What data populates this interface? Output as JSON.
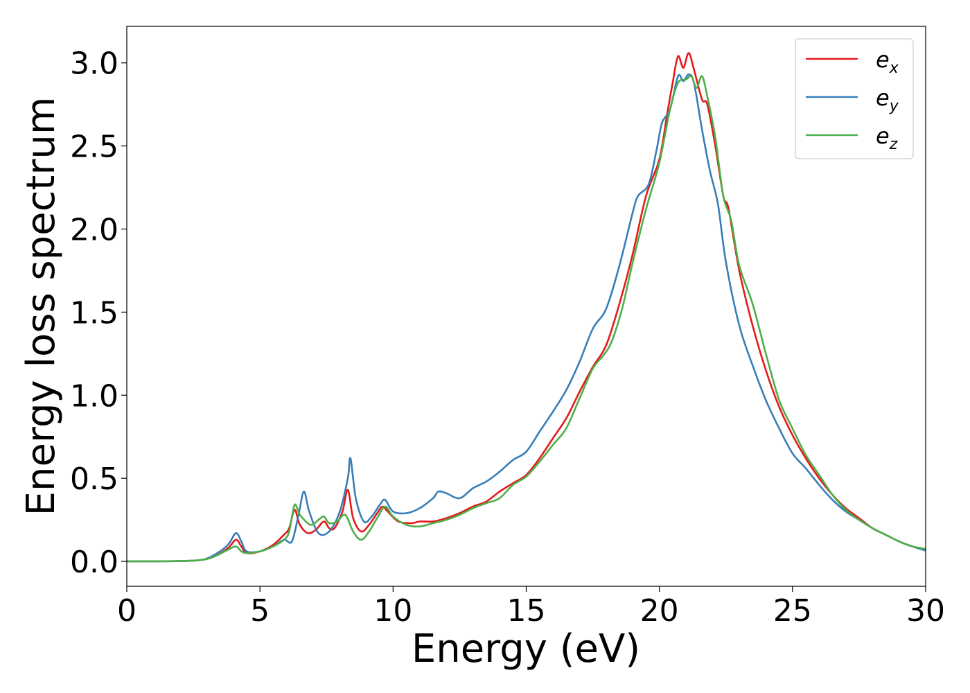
{
  "chart_data": {
    "type": "line",
    "title": "",
    "xlabel": "Energy (eV)",
    "ylabel": "Energy loss spectrum",
    "xlim": [
      0,
      30
    ],
    "ylim": [
      -0.15,
      3.22
    ],
    "xticks": [
      0,
      5,
      10,
      15,
      20,
      25,
      30
    ],
    "yticks": [
      0.0,
      0.5,
      1.0,
      1.5,
      2.0,
      2.5,
      3.0
    ],
    "xtick_labels": [
      "0",
      "5",
      "10",
      "15",
      "20",
      "25",
      "30"
    ],
    "ytick_labels": [
      "0.0",
      "0.5",
      "1.0",
      "1.5",
      "2.0",
      "2.5",
      "3.0"
    ],
    "grid": false,
    "legend_position": "top-right",
    "series": [
      {
        "legend_base": "e",
        "legend_sub": "x",
        "color": "#e41a1c",
        "points": [
          [
            0,
            0
          ],
          [
            2,
            0.002
          ],
          [
            2.8,
            0.008
          ],
          [
            3.3,
            0.03
          ],
          [
            3.8,
            0.08
          ],
          [
            4.1,
            0.13
          ],
          [
            4.3,
            0.09
          ],
          [
            4.5,
            0.05
          ],
          [
            5,
            0.06
          ],
          [
            5.5,
            0.1
          ],
          [
            5.9,
            0.16
          ],
          [
            6.1,
            0.2
          ],
          [
            6.3,
            0.31
          ],
          [
            6.5,
            0.22
          ],
          [
            6.8,
            0.17
          ],
          [
            7.1,
            0.19
          ],
          [
            7.4,
            0.24
          ],
          [
            7.6,
            0.2
          ],
          [
            7.8,
            0.2
          ],
          [
            8.1,
            0.3
          ],
          [
            8.3,
            0.43
          ],
          [
            8.5,
            0.26
          ],
          [
            8.8,
            0.18
          ],
          [
            9.1,
            0.22
          ],
          [
            9.4,
            0.29
          ],
          [
            9.6,
            0.33
          ],
          [
            9.8,
            0.3
          ],
          [
            10.2,
            0.24
          ],
          [
            10.7,
            0.23
          ],
          [
            11,
            0.24
          ],
          [
            11.5,
            0.24
          ],
          [
            12,
            0.26
          ],
          [
            12.5,
            0.29
          ],
          [
            13,
            0.33
          ],
          [
            13.5,
            0.36
          ],
          [
            14,
            0.42
          ],
          [
            14.5,
            0.47
          ],
          [
            15,
            0.52
          ],
          [
            15.5,
            0.62
          ],
          [
            16,
            0.74
          ],
          [
            16.5,
            0.86
          ],
          [
            17,
            1.02
          ],
          [
            17.5,
            1.17
          ],
          [
            18,
            1.3
          ],
          [
            18.5,
            1.55
          ],
          [
            19,
            1.85
          ],
          [
            19.5,
            2.2
          ],
          [
            20,
            2.42
          ],
          [
            20.3,
            2.7
          ],
          [
            20.5,
            2.88
          ],
          [
            20.7,
            3.04
          ],
          [
            20.9,
            2.97
          ],
          [
            21.1,
            3.06
          ],
          [
            21.3,
            2.96
          ],
          [
            21.6,
            2.78
          ],
          [
            21.8,
            2.75
          ],
          [
            22.1,
            2.5
          ],
          [
            22.4,
            2.2
          ],
          [
            22.6,
            2.12
          ],
          [
            23,
            1.75
          ],
          [
            23.5,
            1.42
          ],
          [
            24,
            1.15
          ],
          [
            24.5,
            0.93
          ],
          [
            25,
            0.76
          ],
          [
            25.5,
            0.62
          ],
          [
            26,
            0.5
          ],
          [
            26.5,
            0.4
          ],
          [
            27,
            0.32
          ],
          [
            27.5,
            0.26
          ],
          [
            28,
            0.2
          ],
          [
            28.5,
            0.16
          ],
          [
            29,
            0.12
          ],
          [
            29.5,
            0.09
          ],
          [
            30,
            0.07
          ]
        ]
      },
      {
        "legend_base": "e",
        "legend_sub": "y",
        "color": "#377eb8",
        "points": [
          [
            0,
            0
          ],
          [
            2,
            0.002
          ],
          [
            2.8,
            0.008
          ],
          [
            3.3,
            0.04
          ],
          [
            3.8,
            0.1
          ],
          [
            4.1,
            0.17
          ],
          [
            4.3,
            0.12
          ],
          [
            4.5,
            0.06
          ],
          [
            5,
            0.06
          ],
          [
            5.5,
            0.09
          ],
          [
            5.9,
            0.13
          ],
          [
            6.2,
            0.12
          ],
          [
            6.45,
            0.28
          ],
          [
            6.65,
            0.42
          ],
          [
            6.85,
            0.3
          ],
          [
            7.2,
            0.17
          ],
          [
            7.6,
            0.18
          ],
          [
            8.0,
            0.3
          ],
          [
            8.3,
            0.5
          ],
          [
            8.4,
            0.62
          ],
          [
            8.6,
            0.38
          ],
          [
            8.9,
            0.24
          ],
          [
            9.2,
            0.27
          ],
          [
            9.5,
            0.34
          ],
          [
            9.7,
            0.37
          ],
          [
            10,
            0.3
          ],
          [
            10.5,
            0.29
          ],
          [
            11,
            0.32
          ],
          [
            11.5,
            0.38
          ],
          [
            11.7,
            0.42
          ],
          [
            12,
            0.41
          ],
          [
            12.5,
            0.38
          ],
          [
            13,
            0.44
          ],
          [
            13.5,
            0.48
          ],
          [
            14,
            0.54
          ],
          [
            14.5,
            0.61
          ],
          [
            15,
            0.66
          ],
          [
            15.5,
            0.78
          ],
          [
            16,
            0.9
          ],
          [
            16.5,
            1.03
          ],
          [
            17,
            1.2
          ],
          [
            17.5,
            1.4
          ],
          [
            18,
            1.52
          ],
          [
            18.5,
            1.78
          ],
          [
            19,
            2.1
          ],
          [
            19.2,
            2.2
          ],
          [
            19.6,
            2.27
          ],
          [
            19.9,
            2.48
          ],
          [
            20.1,
            2.64
          ],
          [
            20.4,
            2.72
          ],
          [
            20.7,
            2.92
          ],
          [
            20.9,
            2.89
          ],
          [
            21.1,
            2.93
          ],
          [
            21.3,
            2.88
          ],
          [
            21.6,
            2.6
          ],
          [
            21.9,
            2.35
          ],
          [
            22.2,
            2.15
          ],
          [
            22.5,
            1.8
          ],
          [
            23,
            1.42
          ],
          [
            23.5,
            1.18
          ],
          [
            24,
            0.97
          ],
          [
            24.5,
            0.8
          ],
          [
            25,
            0.65
          ],
          [
            25.5,
            0.56
          ],
          [
            26,
            0.46
          ],
          [
            26.5,
            0.37
          ],
          [
            27,
            0.3
          ],
          [
            27.5,
            0.25
          ],
          [
            28,
            0.2
          ],
          [
            28.5,
            0.16
          ],
          [
            29,
            0.12
          ],
          [
            29.5,
            0.09
          ],
          [
            30,
            0.065
          ]
        ]
      },
      {
        "legend_base": "e",
        "legend_sub": "z",
        "color": "#4daf4a",
        "points": [
          [
            0,
            0
          ],
          [
            2,
            0.002
          ],
          [
            2.8,
            0.008
          ],
          [
            3.3,
            0.03
          ],
          [
            3.8,
            0.07
          ],
          [
            4.1,
            0.09
          ],
          [
            4.3,
            0.06
          ],
          [
            4.5,
            0.05
          ],
          [
            5,
            0.06
          ],
          [
            5.5,
            0.09
          ],
          [
            5.9,
            0.13
          ],
          [
            6.1,
            0.18
          ],
          [
            6.3,
            0.34
          ],
          [
            6.5,
            0.28
          ],
          [
            6.9,
            0.22
          ],
          [
            7.2,
            0.25
          ],
          [
            7.4,
            0.27
          ],
          [
            7.6,
            0.23
          ],
          [
            7.9,
            0.24
          ],
          [
            8.2,
            0.28
          ],
          [
            8.5,
            0.18
          ],
          [
            8.8,
            0.13
          ],
          [
            9.1,
            0.18
          ],
          [
            9.4,
            0.26
          ],
          [
            9.7,
            0.33
          ],
          [
            10,
            0.27
          ],
          [
            10.5,
            0.22
          ],
          [
            11,
            0.21
          ],
          [
            11.5,
            0.23
          ],
          [
            12,
            0.25
          ],
          [
            12.5,
            0.28
          ],
          [
            13,
            0.32
          ],
          [
            13.5,
            0.35
          ],
          [
            14,
            0.38
          ],
          [
            14.5,
            0.46
          ],
          [
            15,
            0.51
          ],
          [
            15.5,
            0.6
          ],
          [
            16,
            0.7
          ],
          [
            16.5,
            0.8
          ],
          [
            17,
            0.98
          ],
          [
            17.5,
            1.16
          ],
          [
            17.9,
            1.24
          ],
          [
            18.2,
            1.32
          ],
          [
            18.6,
            1.52
          ],
          [
            19,
            1.8
          ],
          [
            19.5,
            2.12
          ],
          [
            20,
            2.4
          ],
          [
            20.4,
            2.72
          ],
          [
            20.7,
            2.88
          ],
          [
            21,
            2.9
          ],
          [
            21.2,
            2.92
          ],
          [
            21.4,
            2.85
          ],
          [
            21.6,
            2.92
          ],
          [
            21.8,
            2.8
          ],
          [
            22.1,
            2.55
          ],
          [
            22.4,
            2.2
          ],
          [
            22.7,
            2.05
          ],
          [
            23,
            1.78
          ],
          [
            23.5,
            1.55
          ],
          [
            24,
            1.25
          ],
          [
            24.5,
            0.97
          ],
          [
            25,
            0.8
          ],
          [
            25.5,
            0.64
          ],
          [
            26,
            0.52
          ],
          [
            26.5,
            0.4
          ],
          [
            27,
            0.31
          ],
          [
            27.5,
            0.25
          ],
          [
            28,
            0.2
          ],
          [
            28.5,
            0.16
          ],
          [
            29,
            0.12
          ],
          [
            29.5,
            0.09
          ],
          [
            30,
            0.075
          ]
        ]
      }
    ]
  }
}
